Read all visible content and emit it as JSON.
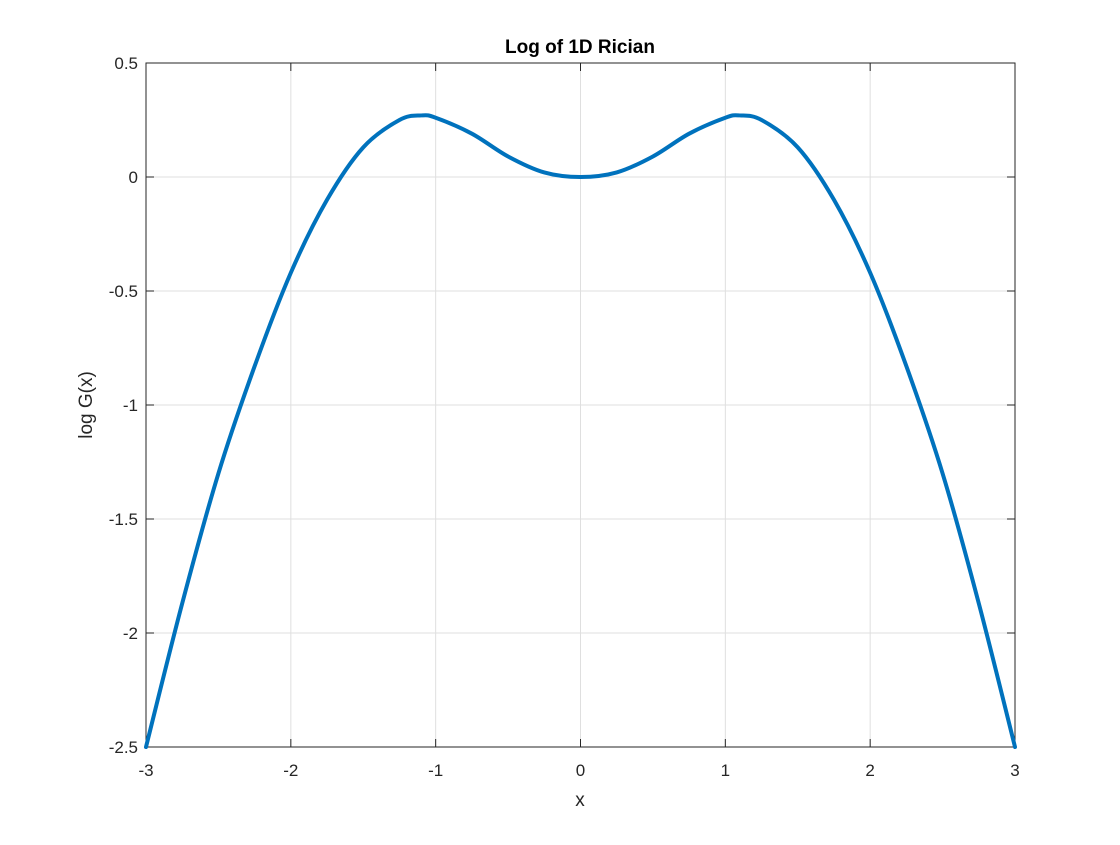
{
  "chart_data": {
    "type": "line",
    "title": "Log of 1D Rician",
    "xlabel": "x",
    "ylabel": "log G(x)",
    "xlim": [
      -3,
      3
    ],
    "ylim": [
      -2.5,
      0.5
    ],
    "x_ticks": [
      -3,
      -2,
      -1,
      0,
      1,
      2,
      3
    ],
    "x_tick_labels": [
      "-3",
      "-2",
      "-1",
      "0",
      "1",
      "2",
      "3"
    ],
    "y_ticks": [
      -2.5,
      -2,
      -1.5,
      -1,
      -0.5,
      0,
      0.5
    ],
    "y_tick_labels": [
      "-2.5",
      "-2",
      "-1.5",
      "-1",
      "-0.5",
      "0",
      "0.5"
    ],
    "grid": true,
    "series": [
      {
        "color": "#0072BD",
        "x": [
          -3,
          -2.75,
          -2.5,
          -2.25,
          -2,
          -1.75,
          -1.5,
          -1.25,
          -1.1,
          -1,
          -0.75,
          -0.5,
          -0.25,
          0,
          0.25,
          0.5,
          0.75,
          1,
          1.1,
          1.25,
          1.5,
          1.75,
          2,
          2.25,
          2.5,
          2.75,
          3
        ],
        "y": [
          -2.5,
          -1.87,
          -1.3,
          -0.83,
          -0.42,
          -0.1,
          0.13,
          0.25,
          0.27,
          0.26,
          0.19,
          0.09,
          0.02,
          0,
          0.02,
          0.09,
          0.19,
          0.26,
          0.27,
          0.25,
          0.13,
          -0.1,
          -0.42,
          -0.83,
          -1.3,
          -1.87,
          -2.5
        ]
      }
    ]
  }
}
